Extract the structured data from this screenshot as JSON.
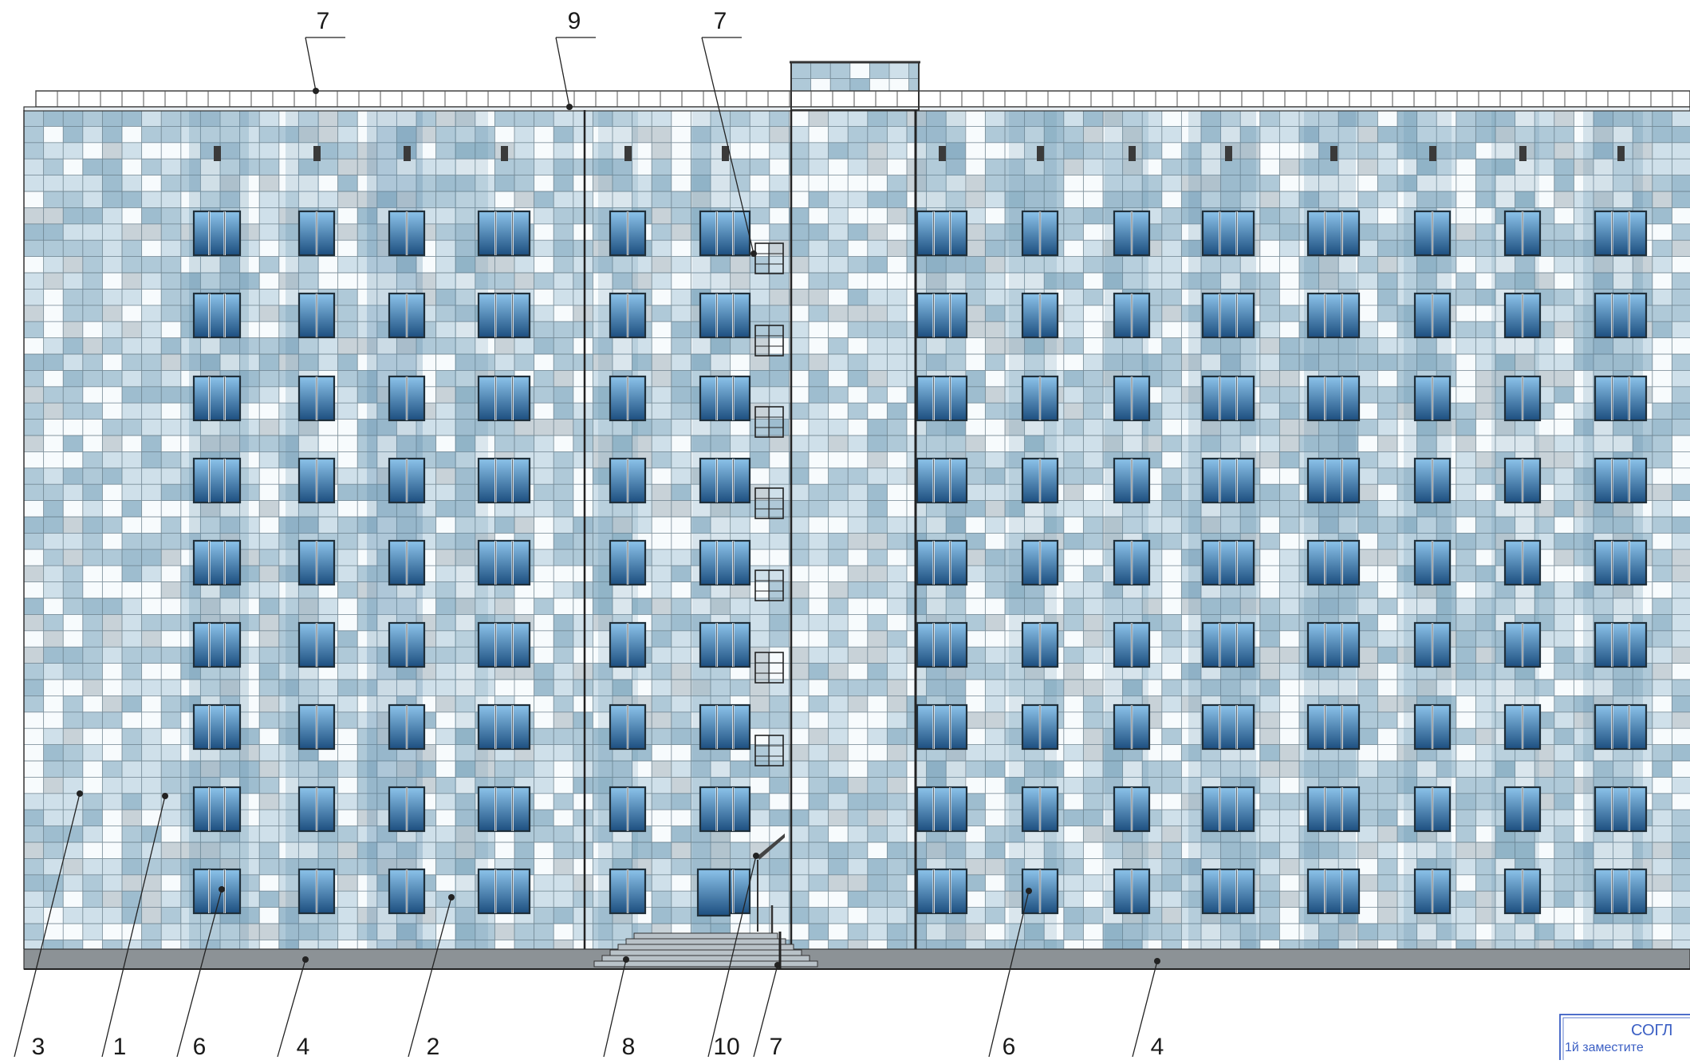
{
  "drawing": {
    "colors": {
      "tile_white": "#f7fbfd",
      "tile_pale": "#cfe0ea",
      "tile_light": "#afc9d8",
      "tile_mid": "#9ebdcf",
      "tile_grey": "#c8d2d8",
      "grid_line": "#5f7480",
      "glass_top": "#8cc3ea",
      "glass_bottom": "#1d4f80",
      "plinth": "#8c9296",
      "stamp": "#3b5fc4"
    },
    "floors": 9,
    "callouts_top": [
      {
        "id": "parapet-left",
        "number": "7"
      },
      {
        "id": "roof-edge",
        "number": "9"
      },
      {
        "id": "ladder-top",
        "number": "7"
      }
    ],
    "callouts_bottom": [
      {
        "id": "tile-mix",
        "number": "3"
      },
      {
        "id": "tile-white",
        "number": "1"
      },
      {
        "id": "window-left",
        "number": "6"
      },
      {
        "id": "plinth-left",
        "number": "4"
      },
      {
        "id": "tile-blue",
        "number": "2"
      },
      {
        "id": "stairs",
        "number": "8"
      },
      {
        "id": "canopy",
        "number": "10"
      },
      {
        "id": "railing",
        "number": "7"
      },
      {
        "id": "window-right",
        "number": "6"
      },
      {
        "id": "plinth-right",
        "number": "4"
      }
    ],
    "stamp": {
      "line1": "СОГЛ",
      "line2": "1й заместите"
    }
  }
}
